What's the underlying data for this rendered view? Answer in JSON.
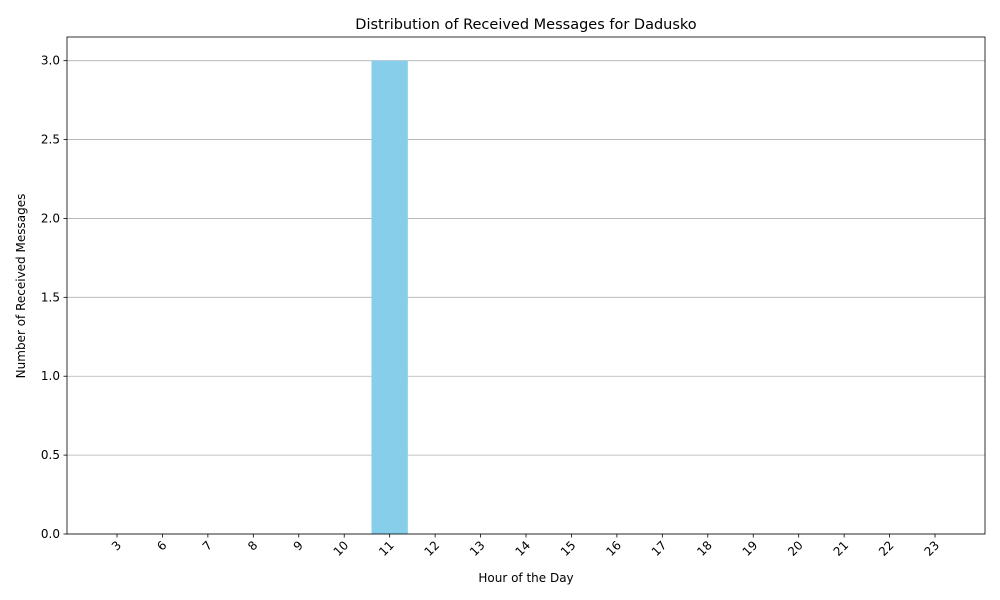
{
  "chart_data": {
    "type": "bar",
    "title": "Distribution of Received Messages for Dadusko",
    "xlabel": "Hour of the Day",
    "ylabel": "Number of Received Messages",
    "categories": [
      "3",
      "6",
      "7",
      "8",
      "9",
      "10",
      "11",
      "12",
      "13",
      "14",
      "15",
      "16",
      "17",
      "18",
      "19",
      "20",
      "21",
      "22",
      "23"
    ],
    "values": [
      0,
      0,
      0,
      0,
      0,
      0,
      3,
      0,
      0,
      0,
      0,
      0,
      0,
      0,
      0,
      0,
      0,
      0,
      0
    ],
    "ylim": [
      0,
      3.15
    ],
    "yticks": [
      0.0,
      0.5,
      1.0,
      1.5,
      2.0,
      2.5,
      3.0
    ],
    "ytick_labels": [
      "0.0",
      "0.5",
      "1.0",
      "1.5",
      "2.0",
      "2.5",
      "3.0"
    ],
    "grid": "y-axis horizontal",
    "legend": "none",
    "bar_color": "#87ceeb",
    "grid_color": "#b0b0b0",
    "x_tick_rotation_deg": 45
  }
}
